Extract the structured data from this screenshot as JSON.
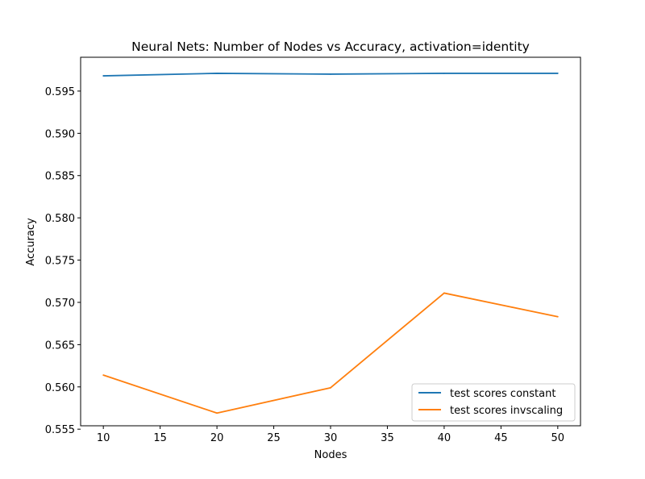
{
  "chart_data": {
    "type": "line",
    "title": "Neural Nets: Number of Nodes vs Accuracy, activation=identity",
    "xlabel": "Nodes",
    "ylabel": "Accuracy",
    "x": [
      10,
      20,
      30,
      40,
      50
    ],
    "xticks": [
      10,
      15,
      20,
      25,
      30,
      35,
      40,
      45,
      50
    ],
    "yticks": [
      0.555,
      0.56,
      0.565,
      0.57,
      0.575,
      0.58,
      0.585,
      0.59,
      0.595
    ],
    "ytick_labels": [
      "0.555",
      "0.560",
      "0.565",
      "0.570",
      "0.575",
      "0.580",
      "0.585",
      "0.590",
      "0.595"
    ],
    "xlim": [
      8,
      52
    ],
    "ylim": [
      0.5554,
      0.599
    ],
    "grid": false,
    "legend_position": "lower right",
    "series": [
      {
        "name": "test scores constant",
        "color": "#1f77b4",
        "values": [
          0.5968,
          0.5971,
          0.597,
          0.5971,
          0.5971
        ]
      },
      {
        "name": "test scores invscaling",
        "color": "#ff7f0e",
        "values": [
          0.5614,
          0.5569,
          0.5599,
          0.5711,
          0.5683
        ]
      }
    ]
  }
}
